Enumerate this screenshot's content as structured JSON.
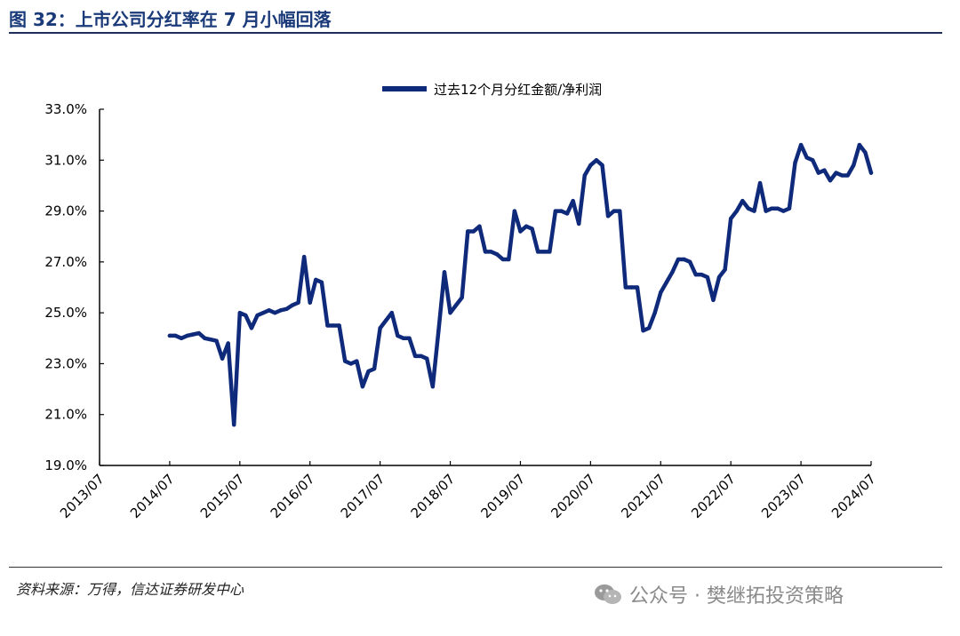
{
  "header": {
    "title": "图 32：上市公司分红率在 7 月小幅回落"
  },
  "footer": {
    "source": "资料来源：万得，信达证券研发中心",
    "watermark": "公众号 · 樊继拓投资策略",
    "watermark_icon": "wechat-icon"
  },
  "colors": {
    "series": "#0f2a7a",
    "title": "#1a3a7a"
  },
  "chart_data": {
    "type": "line",
    "legend_position": "top",
    "grid": false,
    "ylim": [
      19.0,
      33.0
    ],
    "yticks": [
      "19.0%",
      "21.0%",
      "23.0%",
      "25.0%",
      "27.0%",
      "29.0%",
      "31.0%",
      "33.0%"
    ],
    "xticks": [
      "2013/07",
      "2014/07",
      "2015/07",
      "2016/07",
      "2017/07",
      "2018/07",
      "2019/07",
      "2020/07",
      "2021/07",
      "2022/07",
      "2023/07",
      "2024/07"
    ],
    "series": [
      {
        "name": "过去12个月分红金额/净利润",
        "points": [
          [
            "2014/07",
            24.1
          ],
          [
            "2014/08",
            24.1
          ],
          [
            "2014/09",
            24.0
          ],
          [
            "2014/10",
            24.1
          ],
          [
            "2014/11",
            24.15
          ],
          [
            "2014/12",
            24.2
          ],
          [
            "2015/01",
            24.0
          ],
          [
            "2015/02",
            23.95
          ],
          [
            "2015/03",
            23.9
          ],
          [
            "2015/04",
            23.2
          ],
          [
            "2015/05",
            23.8
          ],
          [
            "2015/06",
            20.6
          ],
          [
            "2015/07",
            25.0
          ],
          [
            "2015/08",
            24.9
          ],
          [
            "2015/09",
            24.4
          ],
          [
            "2015/10",
            24.9
          ],
          [
            "2015/11",
            25.0
          ],
          [
            "2015/12",
            25.1
          ],
          [
            "2016/01",
            25.0
          ],
          [
            "2016/02",
            25.1
          ],
          [
            "2016/03",
            25.15
          ],
          [
            "2016/04",
            25.3
          ],
          [
            "2016/05",
            25.4
          ],
          [
            "2016/06",
            27.2
          ],
          [
            "2016/07",
            25.4
          ],
          [
            "2016/08",
            26.3
          ],
          [
            "2016/09",
            26.2
          ],
          [
            "2016/10",
            24.5
          ],
          [
            "2016/11",
            24.5
          ],
          [
            "2016/12",
            24.5
          ],
          [
            "2017/01",
            23.1
          ],
          [
            "2017/02",
            23.0
          ],
          [
            "2017/03",
            23.1
          ],
          [
            "2017/04",
            22.1
          ],
          [
            "2017/05",
            22.7
          ],
          [
            "2017/06",
            22.8
          ],
          [
            "2017/07",
            24.4
          ],
          [
            "2017/08",
            24.7
          ],
          [
            "2017/09",
            25.0
          ],
          [
            "2017/10",
            24.1
          ],
          [
            "2017/11",
            24.0
          ],
          [
            "2017/12",
            24.0
          ],
          [
            "2018/01",
            23.3
          ],
          [
            "2018/02",
            23.3
          ],
          [
            "2018/03",
            23.2
          ],
          [
            "2018/04",
            22.1
          ],
          [
            "2018/05",
            24.3
          ],
          [
            "2018/06",
            26.6
          ],
          [
            "2018/07",
            25.0
          ],
          [
            "2018/08",
            25.3
          ],
          [
            "2018/09",
            25.6
          ],
          [
            "2018/10",
            28.2
          ],
          [
            "2018/11",
            28.2
          ],
          [
            "2018/12",
            28.4
          ],
          [
            "2019/01",
            27.4
          ],
          [
            "2019/02",
            27.4
          ],
          [
            "2019/03",
            27.3
          ],
          [
            "2019/04",
            27.1
          ],
          [
            "2019/05",
            27.1
          ],
          [
            "2019/06",
            29.0
          ],
          [
            "2019/07",
            28.2
          ],
          [
            "2019/08",
            28.4
          ],
          [
            "2019/09",
            28.3
          ],
          [
            "2019/10",
            27.4
          ],
          [
            "2019/11",
            27.4
          ],
          [
            "2019/12",
            27.4
          ],
          [
            "2020/01",
            29.0
          ],
          [
            "2020/02",
            29.0
          ],
          [
            "2020/03",
            28.9
          ],
          [
            "2020/04",
            29.4
          ],
          [
            "2020/05",
            28.5
          ],
          [
            "2020/06",
            30.4
          ],
          [
            "2020/07",
            30.8
          ],
          [
            "2020/08",
            31.0
          ],
          [
            "2020/09",
            30.8
          ],
          [
            "2020/10",
            28.8
          ],
          [
            "2020/11",
            29.0
          ],
          [
            "2020/12",
            29.0
          ],
          [
            "2021/01",
            26.0
          ],
          [
            "2021/02",
            26.0
          ],
          [
            "2021/03",
            26.0
          ],
          [
            "2021/04",
            24.3
          ],
          [
            "2021/05",
            24.4
          ],
          [
            "2021/06",
            25.0
          ],
          [
            "2021/07",
            25.8
          ],
          [
            "2021/08",
            26.2
          ],
          [
            "2021/09",
            26.6
          ],
          [
            "2021/10",
            27.1
          ],
          [
            "2021/11",
            27.1
          ],
          [
            "2021/12",
            27.0
          ],
          [
            "2022/01",
            26.5
          ],
          [
            "2022/02",
            26.5
          ],
          [
            "2022/03",
            26.4
          ],
          [
            "2022/04",
            25.5
          ],
          [
            "2022/05",
            26.4
          ],
          [
            "2022/06",
            26.7
          ],
          [
            "2022/07",
            28.7
          ],
          [
            "2022/08",
            29.0
          ],
          [
            "2022/09",
            29.4
          ],
          [
            "2022/10",
            29.1
          ],
          [
            "2022/11",
            29.0
          ],
          [
            "2022/12",
            30.1
          ],
          [
            "2023/01",
            29.0
          ],
          [
            "2023/02",
            29.1
          ],
          [
            "2023/03",
            29.1
          ],
          [
            "2023/04",
            29.0
          ],
          [
            "2023/05",
            29.1
          ],
          [
            "2023/06",
            30.9
          ],
          [
            "2023/07",
            31.6
          ],
          [
            "2023/08",
            31.1
          ],
          [
            "2023/09",
            31.0
          ],
          [
            "2023/10",
            30.5
          ],
          [
            "2023/11",
            30.6
          ],
          [
            "2023/12",
            30.2
          ],
          [
            "2024/01",
            30.5
          ],
          [
            "2024/02",
            30.4
          ],
          [
            "2024/03",
            30.4
          ],
          [
            "2024/04",
            30.8
          ],
          [
            "2024/05",
            31.6
          ],
          [
            "2024/06",
            31.3
          ],
          [
            "2024/07",
            30.5
          ]
        ]
      }
    ]
  }
}
